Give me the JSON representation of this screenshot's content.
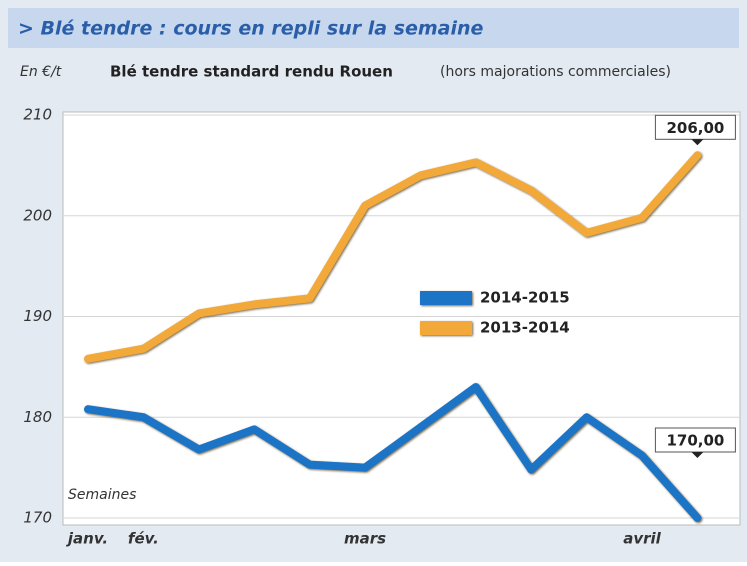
{
  "chart_data": {
    "type": "line",
    "title": "> Blé tendre : cours en repli sur la semaine",
    "y_unit_label": "En €/t",
    "subtitle": "Blé tendre standard rendu Rouen",
    "subtitle_note": "(hors majorations commerciales)",
    "x_label": "Semaines",
    "categories": [
      "janv.",
      "fév.",
      null,
      null,
      null,
      "mars",
      null,
      null,
      null,
      null,
      "avril",
      null
    ],
    "series": [
      {
        "name": "2014-2015",
        "color": "#1b74c5",
        "values": [
          180.8,
          180,
          176.8,
          178.8,
          175.3,
          175,
          179,
          183,
          174.8,
          180,
          176.2,
          170
        ],
        "value_labels": [
          null,
          null,
          null,
          null,
          null,
          null,
          null,
          null,
          null,
          null,
          null,
          "170,00"
        ]
      },
      {
        "name": "2013-2014",
        "color": "#f3a93a",
        "values": [
          185.8,
          186.8,
          190.3,
          191.2,
          191.8,
          201,
          204,
          205.3,
          202.5,
          198.3,
          199.8,
          206
        ],
        "value_labels": [
          null,
          null,
          null,
          null,
          null,
          null,
          null,
          null,
          null,
          null,
          null,
          "206,00"
        ]
      }
    ],
    "ylim": [
      170,
      210
    ],
    "yticks": [
      170,
      180,
      190,
      200,
      210
    ],
    "grid": true
  }
}
